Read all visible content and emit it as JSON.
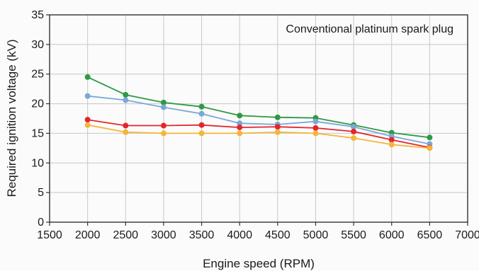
{
  "chart_data": {
    "type": "line",
    "annotation": "Conventional platinum spark plug",
    "xlabel": "Engine speed (RPM)",
    "ylabel": "Required ignition voltage (kV)",
    "xlim": [
      1500,
      7000
    ],
    "ylim": [
      0,
      35
    ],
    "xticks": [
      1500,
      2000,
      2500,
      3000,
      3500,
      4000,
      4500,
      5000,
      5500,
      6000,
      6500,
      7000
    ],
    "yticks": [
      0,
      5,
      10,
      15,
      20,
      25,
      30,
      35
    ],
    "grid": true,
    "x": [
      2000,
      2500,
      3000,
      3500,
      4000,
      4500,
      5000,
      5500,
      6000,
      6500
    ],
    "series": [
      {
        "color": "#2e9a44",
        "values": [
          24.5,
          21.5,
          20.2,
          19.5,
          18.0,
          17.7,
          17.6,
          16.4,
          15.1,
          14.3
        ]
      },
      {
        "color": "#7aa8d8",
        "values": [
          21.3,
          20.6,
          19.4,
          18.3,
          16.7,
          16.5,
          17.0,
          16.1,
          14.5,
          13.2
        ]
      },
      {
        "color": "#e3262b",
        "values": [
          17.3,
          16.3,
          16.3,
          16.4,
          16.0,
          16.1,
          15.9,
          15.3,
          13.9,
          12.6
        ]
      },
      {
        "color": "#f5b53a",
        "values": [
          16.4,
          15.2,
          15.0,
          15.0,
          15.0,
          15.2,
          15.0,
          14.2,
          13.1,
          12.5
        ]
      }
    ]
  }
}
